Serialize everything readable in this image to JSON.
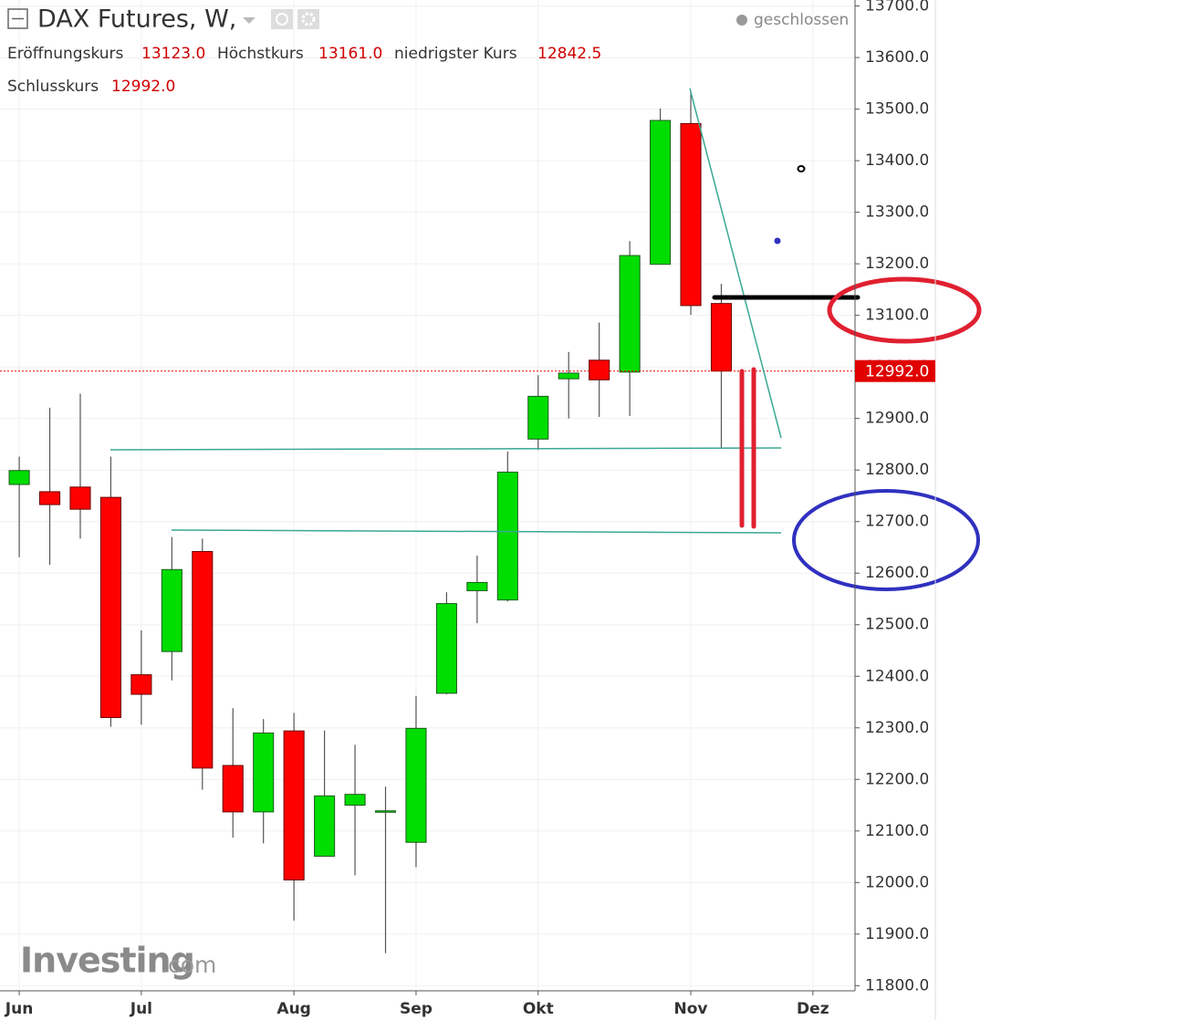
{
  "header": {
    "title": "DAX Futures, W,",
    "status": "geschlossen",
    "open_label": "Eröffnungskurs",
    "open_value": "13123.0",
    "high_label": "Höchstkurs",
    "high_value": "13161.0",
    "low_label": "niedrigster Kurs",
    "low_value": "12842.5",
    "close_label": "Schlusskurs",
    "close_value": "12992.0"
  },
  "watermark": {
    "brand": "Investing",
    "suffix": ".com"
  },
  "chart_data": {
    "type": "candlestick",
    "open": [
      12772,
      12758,
      12767,
      12747,
      12403,
      12448,
      12642,
      12227,
      12137,
      12294,
      12051,
      12150,
      12137,
      12078,
      12367,
      12566,
      12548,
      12860,
      12977,
      13013,
      12990,
      13199,
      13472,
      13123
    ],
    "high": [
      12826,
      12921,
      12948,
      12826,
      12489,
      12670,
      12667,
      12338,
      12317,
      12329,
      12295,
      12267,
      12186,
      12362,
      12563,
      12634,
      12836,
      12984,
      13029,
      13086,
      13244,
      13501,
      13531,
      13161
    ],
    "low": [
      12631,
      12616,
      12667,
      12302,
      12306,
      12392,
      12180,
      12087,
      12076,
      11926,
      12051,
      12014,
      11863,
      12030,
      12365,
      12503,
      12545,
      12839,
      12900,
      12903,
      12905,
      13199,
      13101,
      12842.5
    ],
    "close": [
      12799,
      12733,
      12724,
      12320,
      12365,
      12607,
      12222,
      12137,
      12290,
      12005,
      12168,
      12171,
      12139,
      12299,
      12541,
      12582,
      12796,
      12943,
      12988,
      12975,
      13216,
      13478,
      13119,
      12992
    ],
    "up_color": "#00dd00",
    "down_color": "#ff0000",
    "xlim": [
      -0.63,
      27.38
    ],
    "xticks": [
      {
        "value": 0,
        "label": "Jun"
      },
      {
        "value": 4,
        "label": "Jul"
      },
      {
        "value": 9,
        "label": "Aug"
      },
      {
        "value": 13,
        "label": "Sep"
      },
      {
        "value": 17,
        "label": "Okt"
      },
      {
        "value": 22,
        "label": "Nov"
      },
      {
        "value": 26,
        "label": "Dez"
      }
    ],
    "ylim": [
      11790,
      13701
    ],
    "yticks": [
      {
        "value": 11800,
        "label": "11800.0"
      },
      {
        "value": 11900,
        "label": "11900.0"
      },
      {
        "value": 12000,
        "label": "12000.0"
      },
      {
        "value": 12100,
        "label": "12100.0"
      },
      {
        "value": 12200,
        "label": "12200.0"
      },
      {
        "value": 12300,
        "label": "12300.0"
      },
      {
        "value": 12400,
        "label": "12400.0"
      },
      {
        "value": 12500,
        "label": "12500.0"
      },
      {
        "value": 12600,
        "label": "12600.0"
      },
      {
        "value": 12700,
        "label": "12700.0"
      },
      {
        "value": 12800,
        "label": "12800.0"
      },
      {
        "value": 12900,
        "label": "12900.0"
      },
      {
        "value": 13000,
        "label": "13000.0"
      },
      {
        "value": 13100,
        "label": "13100.0"
      },
      {
        "value": 13200,
        "label": "13200.0"
      },
      {
        "value": 13300,
        "label": "13300.0"
      },
      {
        "value": 13400,
        "label": "13400.0"
      },
      {
        "value": 13500,
        "label": "13500.0"
      },
      {
        "value": 13600,
        "label": "13600.0"
      },
      {
        "value": 13700,
        "label": "13700.0"
      }
    ],
    "last_price": {
      "value": 12992,
      "label": "12992.0"
    },
    "grid": true
  }
}
